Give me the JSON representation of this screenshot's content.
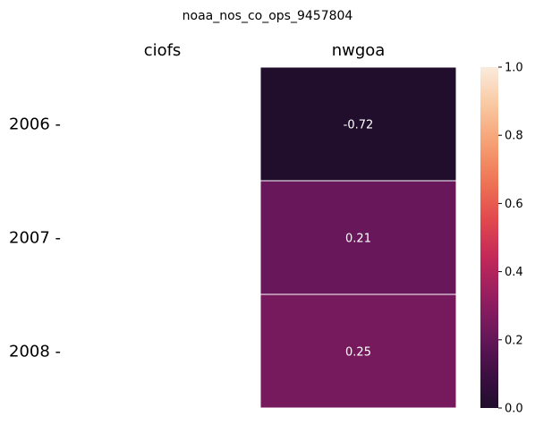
{
  "chart_data": {
    "type": "heatmap",
    "title": "noaa_nos_co_ops_9457804",
    "columns": [
      "ciofs",
      "nwgoa"
    ],
    "rows": [
      "2006",
      "2007",
      "2008"
    ],
    "row_tick_suffix": " -",
    "values": [
      [
        null,
        -0.72
      ],
      [
        null,
        0.21
      ],
      [
        null,
        0.25
      ]
    ],
    "cell_labels": [
      [
        "",
        "-0.72"
      ],
      [
        "",
        "0.21"
      ],
      [
        "",
        "0.25"
      ]
    ],
    "colorbar": {
      "vmin": 0.0,
      "vmax": 1.0,
      "ticks": [
        0.0,
        0.2,
        0.4,
        0.6,
        0.8,
        1.0
      ],
      "tick_labels": [
        "0.0",
        "0.2",
        "0.4",
        "0.6",
        "0.8",
        "1.0"
      ],
      "colormap": "rocket"
    },
    "grid": false
  }
}
